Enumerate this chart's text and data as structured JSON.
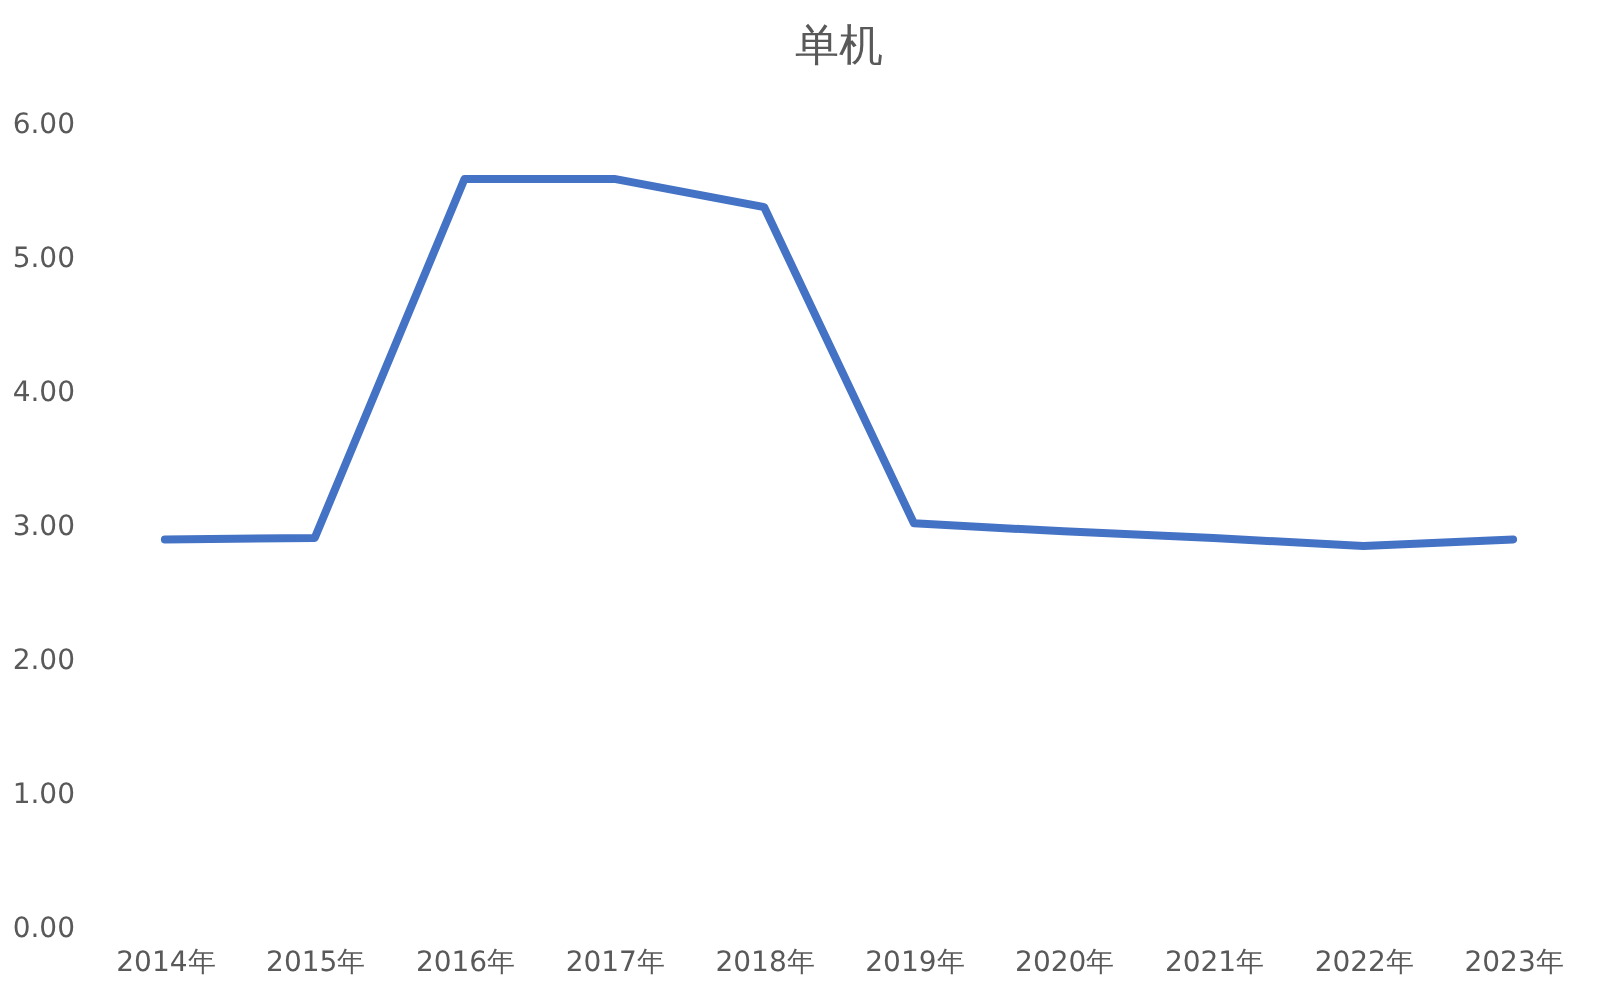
{
  "chart_data": {
    "type": "line",
    "title": "单机",
    "categories": [
      "2014年",
      "2015年",
      "2016年",
      "2017年",
      "2018年",
      "2019年",
      "2020年",
      "2021年",
      "2022年",
      "2023年"
    ],
    "series": [
      {
        "color": "#4472c4",
        "values": [
          2.9,
          2.91,
          5.59,
          5.59,
          5.38,
          3.02,
          2.96,
          2.91,
          2.85,
          2.9
        ]
      }
    ],
    "ylim": [
      0,
      6
    ],
    "yticks": [
      {
        "value": 0,
        "label": "0.00"
      },
      {
        "value": 1,
        "label": "1.00"
      },
      {
        "value": 2,
        "label": "2.00"
      },
      {
        "value": 3,
        "label": "3.00"
      },
      {
        "value": 4,
        "label": "4.00"
      },
      {
        "value": 5,
        "label": "5.00"
      },
      {
        "value": 6,
        "label": "6.00"
      }
    ],
    "grid": false,
    "marker": "none",
    "line_style": "solid"
  }
}
